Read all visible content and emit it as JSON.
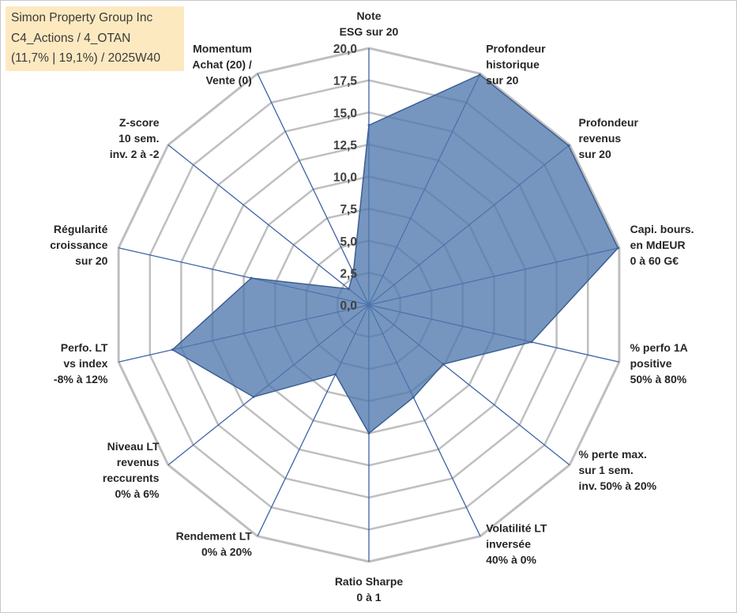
{
  "title_box": {
    "line1": "Simon Property Group Inc",
    "line2": "C4_Actions / 4_OTAN",
    "line3": "(11,7% | 19,1%) / 2025W40"
  },
  "colors": {
    "fill": "#4f79ad",
    "stroke": "#3b5f94",
    "grid": "#bfbfbf",
    "spoke": "#3d62a8",
    "title_bg": "#fde9c0"
  },
  "chart_data": {
    "type": "radar",
    "rmin": 0,
    "rmax": 20,
    "tick_step": 2.5,
    "tick_labels": [
      "0,0",
      "2,5",
      "5,0",
      "7,5",
      "10,0",
      "12,5",
      "15,0",
      "17,5",
      "20,0"
    ],
    "axes": [
      {
        "label": [
          "Note",
          "ESG sur 20"
        ],
        "value": 14.0
      },
      {
        "label": [
          "Profondeur",
          "historique",
          "sur 20"
        ],
        "value": 19.9
      },
      {
        "label": [
          "Profondeur",
          "revenus",
          "sur 20"
        ],
        "value": 19.9
      },
      {
        "label": [
          "Capi. bours.",
          "en MdEUR",
          "0 à 60 G€"
        ],
        "value": 19.9
      },
      {
        "label": [
          "% perfo 1A",
          "positive",
          "50% à 80%"
        ],
        "value": 13.0
      },
      {
        "label": [
          "% perte max.",
          "sur 1 sem.",
          "inv. 50% à 20%"
        ],
        "value": 7.4
      },
      {
        "label": [
          "Volatilité LT",
          "inversée",
          "40% à 0%"
        ],
        "value": 8.0
      },
      {
        "label": [
          "Ratio Sharpe",
          "0 à 1"
        ],
        "value": 10.0
      },
      {
        "label": [
          "Rendement LT",
          "0% à 20%"
        ],
        "value": 6.0
      },
      {
        "label": [
          "Niveau LT",
          "revenus",
          "reccurents",
          "0% à 6%"
        ],
        "value": 11.5
      },
      {
        "label": [
          "Perfo. LT",
          "vs index",
          "-8% à 12%"
        ],
        "value": 15.7
      },
      {
        "label": [
          "Régularité",
          "croissance",
          "sur 20"
        ],
        "value": 9.4
      },
      {
        "label": [
          "Z-score",
          "10 sem.",
          "inv. 2 à -2"
        ],
        "value": 2.0
      },
      {
        "label": [
          "Momentum",
          "Achat (20) /",
          "Vente (0)"
        ],
        "value": 2.8
      }
    ]
  }
}
